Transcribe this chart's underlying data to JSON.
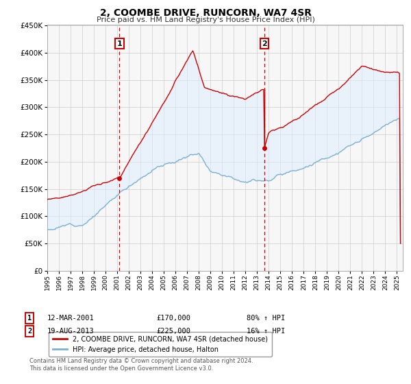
{
  "title": "2, COOMBE DRIVE, RUNCORN, WA7 4SR",
  "subtitle": "Price paid vs. HM Land Registry's House Price Index (HPI)",
  "legend_label_red": "2, COOMBE DRIVE, RUNCORN, WA7 4SR (detached house)",
  "legend_label_blue": "HPI: Average price, detached house, Halton",
  "marker1_date": 2001.19,
  "marker1_price": 170000,
  "marker1_text": "12-MAR-2001",
  "marker1_amount": "£170,000",
  "marker1_pct": "80% ↑ HPI",
  "marker2_date": 2013.63,
  "marker2_price": 225000,
  "marker2_text": "19-AUG-2013",
  "marker2_amount": "£225,000",
  "marker2_pct": "16% ↑ HPI",
  "footnote1": "Contains HM Land Registry data © Crown copyright and database right 2024.",
  "footnote2": "This data is licensed under the Open Government Licence v3.0.",
  "red_color": "#cc0000",
  "blue_color": "#7ab0d4",
  "fill_color": "#ddeeff",
  "background_color": "#f7f7f7",
  "grid_color": "#cccccc",
  "xmin": 1995.0,
  "xmax": 2025.5,
  "ymin": 0,
  "ymax": 450000
}
